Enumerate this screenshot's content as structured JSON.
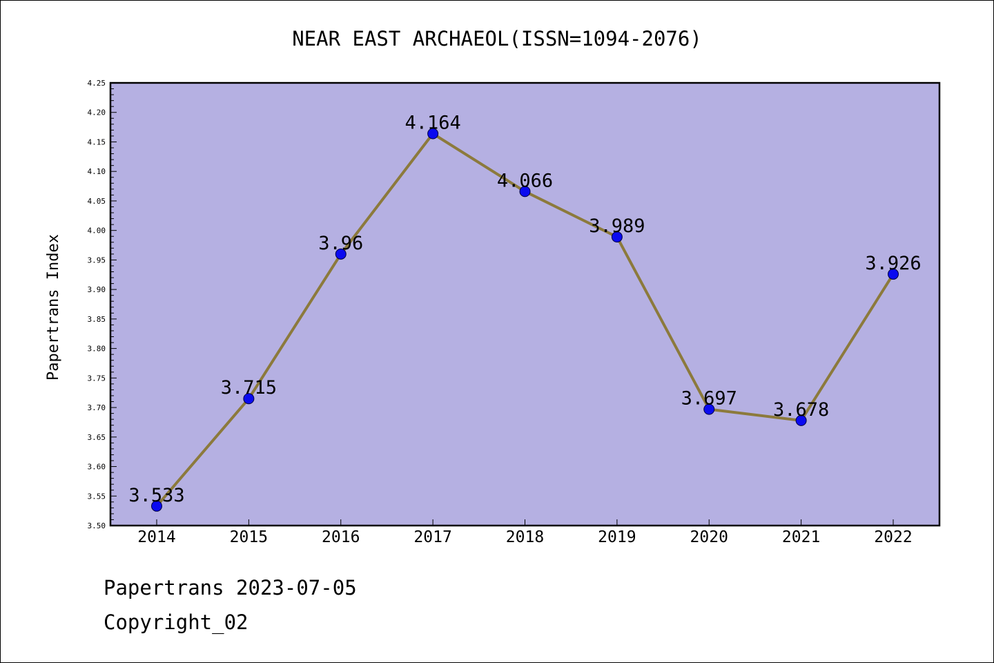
{
  "chart_data": {
    "type": "line",
    "title": "NEAR EAST ARCHAEOL(ISSN=1094-2076)",
    "xlabel": "",
    "ylabel": "Papertrans Index",
    "categories": [
      "2014",
      "2015",
      "2016",
      "2017",
      "2018",
      "2019",
      "2020",
      "2021",
      "2022"
    ],
    "values": [
      3.533,
      3.715,
      3.96,
      4.164,
      4.066,
      3.989,
      3.697,
      3.678,
      3.926
    ],
    "data_labels": [
      "3.533",
      "3.715",
      "3.96",
      "4.164",
      "4.066",
      "3.989",
      "3.697",
      "3.678",
      "3.926"
    ],
    "ylim": [
      3.5,
      4.25
    ],
    "yticks": [
      "3.50",
      "3.55",
      "3.60",
      "3.65",
      "3.70",
      "3.75",
      "3.80",
      "3.85",
      "3.90",
      "3.95",
      "4.00",
      "4.05",
      "4.10",
      "4.15",
      "4.20",
      "4.25"
    ],
    "grid": false,
    "colors": {
      "plot_background": "#b5b0e2",
      "line": "#8c7a3c",
      "marker": "#0a0af0"
    }
  },
  "footer": {
    "line1": "Papertrans 2023-07-05",
    "line2": "Copyright_02"
  }
}
